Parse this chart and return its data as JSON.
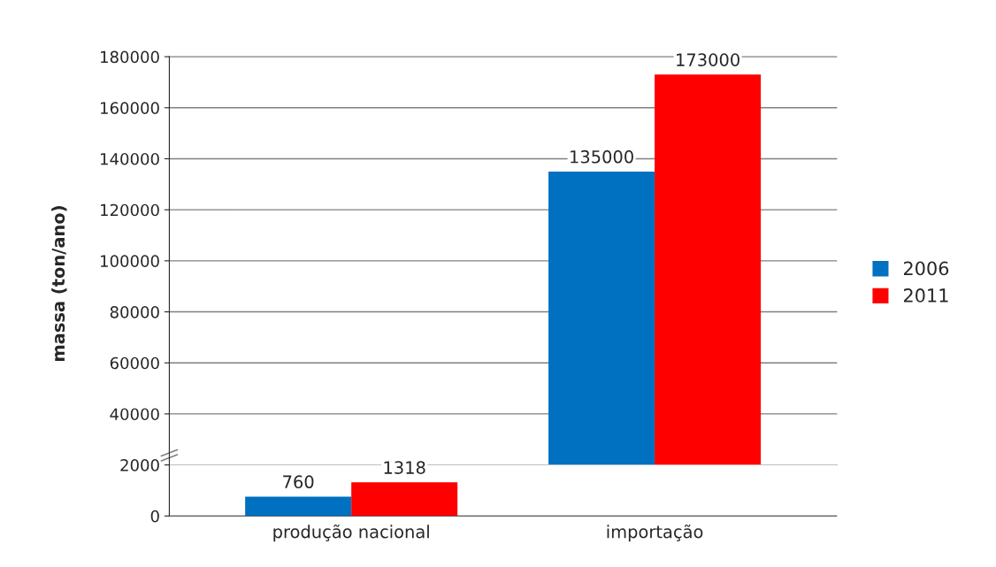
{
  "chart_data": [
    {
      "type": "bar",
      "ylabel": "massa (ton/ano)",
      "series": [
        {
          "name": "2006",
          "color": "#0070c0",
          "values": [
            null,
            135000
          ]
        },
        {
          "name": "2011",
          "color": "#ff0000",
          "values": [
            null,
            173000
          ]
        }
      ],
      "data_labels": true,
      "ylim": [
        20000,
        180000
      ],
      "yticks": [
        40000,
        60000,
        80000,
        100000,
        120000,
        140000,
        160000,
        180000
      ],
      "grid": "y",
      "legend": "right",
      "tick_labels": "y"
    },
    {
      "type": "bar",
      "categories": [
        "produção nacional",
        "importação"
      ],
      "series": [
        {
          "name": "2006",
          "color": "#0070c0",
          "values": [
            760,
            null
          ]
        },
        {
          "name": "2011",
          "color": "#ff0000",
          "values": [
            1318,
            null
          ]
        }
      ],
      "data_labels": true,
      "ylim": [
        0,
        2000
      ],
      "yticks": [
        0,
        2000
      ]
    }
  ]
}
